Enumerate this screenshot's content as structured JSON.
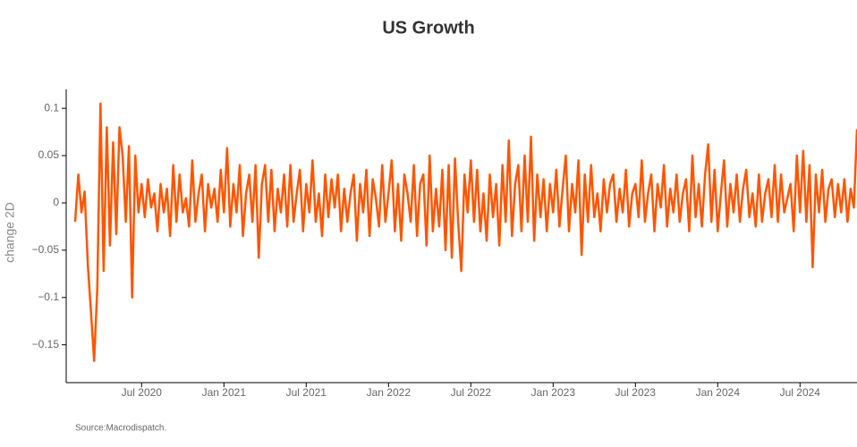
{
  "chart_data": {
    "type": "line",
    "title": "US Growth",
    "y_label": "change 2D",
    "source": "Source:Macrodispatch.",
    "ylim": [
      -0.19,
      0.12
    ],
    "yticks": [
      0.1,
      0.05,
      0,
      {
        "value": -0.05,
        "label": "−0.05"
      },
      {
        "value": -0.1,
        "label": "−0.1"
      },
      {
        "value": -0.15,
        "label": "−0.15"
      }
    ],
    "categories": [
      null,
      null,
      null,
      null,
      null,
      null,
      null,
      null,
      null,
      null,
      null,
      null,
      null,
      null,
      null,
      null,
      null,
      null,
      null,
      null,
      null,
      "Jul 2020",
      null,
      null,
      null,
      null,
      null,
      null,
      null,
      null,
      null,
      null,
      null,
      null,
      null,
      null,
      null,
      null,
      null,
      null,
      null,
      null,
      null,
      null,
      null,
      null,
      null,
      "Jan 2021",
      null,
      null,
      null,
      null,
      null,
      null,
      null,
      null,
      null,
      null,
      null,
      null,
      null,
      null,
      null,
      null,
      null,
      null,
      null,
      null,
      null,
      null,
      null,
      null,
      null,
      "Jul 2021",
      null,
      null,
      null,
      null,
      null,
      null,
      null,
      null,
      null,
      null,
      null,
      null,
      null,
      null,
      null,
      null,
      null,
      null,
      null,
      null,
      null,
      null,
      null,
      null,
      null,
      "Jan 2022",
      null,
      null,
      null,
      null,
      null,
      null,
      null,
      null,
      null,
      null,
      null,
      null,
      null,
      null,
      null,
      null,
      null,
      null,
      null,
      null,
      null,
      null,
      null,
      null,
      null,
      "Jul 2022",
      null,
      null,
      null,
      null,
      null,
      null,
      null,
      null,
      null,
      null,
      null,
      null,
      null,
      null,
      null,
      null,
      null,
      null,
      null,
      null,
      null,
      null,
      null,
      null,
      null,
      "Jan 2023",
      null,
      null,
      null,
      null,
      null,
      null,
      null,
      null,
      null,
      null,
      null,
      null,
      null,
      null,
      null,
      null,
      null,
      null,
      null,
      null,
      null,
      null,
      null,
      null,
      null,
      "Jul 2023",
      null,
      null,
      null,
      null,
      null,
      null,
      null,
      null,
      null,
      null,
      null,
      null,
      null,
      null,
      null,
      null,
      null,
      null,
      null,
      null,
      null,
      null,
      null,
      null,
      null,
      "Jan 2024",
      null,
      null,
      null,
      null,
      null,
      null,
      null,
      null,
      null,
      null,
      null,
      null,
      null,
      null,
      null,
      null,
      null,
      null,
      null,
      null,
      null,
      null,
      null,
      null,
      null,
      "Jul 2024",
      null,
      null,
      null,
      null,
      null,
      null,
      null,
      null,
      null,
      null,
      null,
      null,
      null,
      null,
      null,
      null,
      null,
      null
    ],
    "series": [
      {
        "name": "US Growth",
        "color": "#ff5500",
        "values": [
          -0.02,
          0.03,
          -0.01,
          0.012,
          -0.065,
          -0.115,
          -0.167,
          -0.09,
          0.105,
          -0.072,
          0.08,
          -0.045,
          0.064,
          -0.033,
          0.08,
          0.05,
          -0.02,
          0.06,
          -0.1,
          0.05,
          -0.01,
          0.02,
          -0.015,
          0.025,
          -0.005,
          0.01,
          -0.03,
          0.02,
          -0.01,
          0.015,
          -0.035,
          0.04,
          -0.02,
          0.03,
          -0.01,
          0.005,
          -0.025,
          0.045,
          -0.02,
          0.01,
          0.03,
          -0.03,
          0.02,
          -0.005,
          0.015,
          -0.02,
          0.035,
          -0.01,
          0.058,
          -0.025,
          0.02,
          -0.01,
          0.04,
          -0.035,
          0.01,
          0.03,
          -0.02,
          0.04,
          -0.058,
          0.02,
          0.04,
          -0.02,
          0.035,
          -0.03,
          0.015,
          -0.01,
          0.03,
          -0.025,
          0.04,
          -0.02,
          0.01,
          0.035,
          -0.03,
          0.02,
          -0.01,
          0.045,
          -0.02,
          0.01,
          -0.035,
          0.03,
          -0.015,
          0.025,
          -0.005,
          0.03,
          -0.03,
          0.015,
          -0.02,
          0.01,
          0.03,
          -0.04,
          0.02,
          -0.01,
          0.035,
          -0.035,
          0.025,
          0.005,
          -0.025,
          0.04,
          -0.02,
          0.01,
          0.045,
          -0.03,
          0.02,
          -0.04,
          0.03,
          0.01,
          -0.02,
          0.04,
          -0.035,
          0.02,
          0.03,
          -0.045,
          0.05,
          -0.03,
          0.015,
          -0.025,
          0.035,
          -0.05,
          0.04,
          -0.058,
          0.047,
          -0.02,
          -0.072,
          0.03,
          -0.01,
          0.045,
          -0.02,
          0.035,
          -0.03,
          0.01,
          -0.04,
          0.03,
          -0.015,
          0.02,
          -0.045,
          0.04,
          -0.02,
          0.066,
          -0.035,
          0.02,
          0.04,
          -0.03,
          0.05,
          -0.02,
          0.07,
          -0.04,
          0.03,
          -0.015,
          0.025,
          -0.03,
          0.02,
          -0.01,
          0.035,
          -0.025,
          0.015,
          0.05,
          -0.03,
          0.02,
          -0.01,
          0.045,
          -0.055,
          0.03,
          -0.02,
          0.04,
          -0.015,
          0.01,
          -0.03,
          0.025,
          -0.01,
          0.02,
          0.03,
          -0.02,
          0.015,
          -0.01,
          0.035,
          -0.025,
          0.01,
          0.02,
          -0.015,
          0.045,
          -0.02,
          0.01,
          0.03,
          -0.03,
          0.02,
          -0.005,
          0.04,
          -0.025,
          0.015,
          -0.01,
          0.03,
          -0.02,
          0.01,
          0.025,
          -0.03,
          0.05,
          -0.015,
          0.02,
          -0.025,
          0.03,
          0.062,
          -0.02,
          0.035,
          -0.03,
          0.01,
          0.045,
          -0.025,
          0.02,
          -0.01,
          0.03,
          -0.02,
          0.015,
          0.035,
          -0.015,
          0.01,
          -0.025,
          0.03,
          -0.02,
          0.01,
          0.025,
          -0.015,
          0.04,
          -0.02,
          0.03,
          -0.01,
          0.005,
          0.02,
          -0.03,
          0.05,
          -0.01,
          0.055,
          -0.02,
          0.04,
          -0.068,
          0.03,
          -0.01,
          0.035,
          -0.02,
          0.015,
          0.025,
          -0.015,
          0.02,
          -0.01,
          0.025,
          -0.02,
          0.015,
          -0.005,
          0.078
        ]
      }
    ]
  }
}
